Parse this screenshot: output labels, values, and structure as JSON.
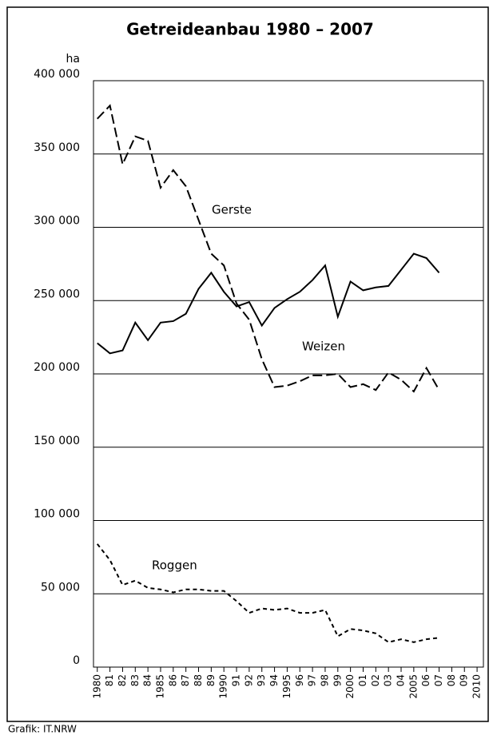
{
  "chart_data": {
    "type": "line",
    "title": "Getreideanbau 1980 – 2007",
    "y_label": "ha",
    "source": "Grafik: IT.NRW",
    "x": [
      1980,
      1981,
      1982,
      1983,
      1984,
      1985,
      1986,
      1987,
      1988,
      1989,
      1990,
      1991,
      1992,
      1993,
      1994,
      1995,
      1996,
      1997,
      1998,
      1999,
      2000,
      2001,
      2002,
      2003,
      2004,
      2005,
      2006,
      2007
    ],
    "series": [
      {
        "name": "Gerste",
        "color": "#000000",
        "line_style": "long-dash",
        "values": [
          374000,
          383000,
          343000,
          362000,
          359000,
          327000,
          339000,
          328000,
          305000,
          282000,
          274000,
          248000,
          237000,
          210000,
          191000,
          192000,
          195000,
          199000,
          199000,
          200000,
          191000,
          193000,
          189000,
          201000,
          196000,
          188000,
          204000,
          189000
        ]
      },
      {
        "name": "Weizen",
        "color": "#000000",
        "line_style": "solid",
        "values": [
          221000,
          214000,
          216000,
          235000,
          223000,
          235000,
          236000,
          241000,
          258000,
          269000,
          256000,
          246000,
          249000,
          233000,
          245000,
          251000,
          256000,
          264000,
          274000,
          239000,
          263000,
          257000,
          259000,
          260000,
          271000,
          282000,
          279000,
          269000
        ]
      },
      {
        "name": "Roggen",
        "color": "#000000",
        "line_style": "short-dash",
        "values": [
          84000,
          73000,
          56000,
          59000,
          54000,
          53000,
          51000,
          53000,
          53000,
          52000,
          52000,
          45000,
          37000,
          40000,
          39000,
          40000,
          37000,
          37000,
          39000,
          21000,
          26000,
          25000,
          23000,
          17000,
          19000,
          17000,
          19000,
          20000
        ]
      }
    ],
    "xlim": [
      1979.7,
      2010.5
    ],
    "ylim": [
      0,
      400000
    ],
    "yticks": [
      0,
      {
        "value": 50000,
        "label": "50 000"
      },
      {
        "value": 100000,
        "label": "100 000"
      },
      {
        "value": 150000,
        "label": "150 000"
      },
      {
        "value": 200000,
        "label": "200 000"
      },
      {
        "value": 250000,
        "label": "250 000"
      },
      {
        "value": 300000,
        "label": "300 000"
      },
      {
        "value": 350000,
        "label": "350 000"
      },
      {
        "value": 400000,
        "label": "400 000"
      }
    ],
    "xticks": [
      {
        "value": 1980,
        "label": "1980"
      },
      {
        "value": 1981,
        "label": "81"
      },
      {
        "value": 1982,
        "label": "82"
      },
      {
        "value": 1983,
        "label": "83"
      },
      {
        "value": 1984,
        "label": "84"
      },
      {
        "value": 1985,
        "label": "1985"
      },
      {
        "value": 1986,
        "label": "86"
      },
      {
        "value": 1987,
        "label": "87"
      },
      {
        "value": 1988,
        "label": "88"
      },
      {
        "value": 1989,
        "label": "89"
      },
      {
        "value": 1990,
        "label": "1990"
      },
      {
        "value": 1991,
        "label": "91"
      },
      {
        "value": 1992,
        "label": "92"
      },
      {
        "value": 1993,
        "label": "93"
      },
      {
        "value": 1994,
        "label": "94"
      },
      {
        "value": 1995,
        "label": "1995"
      },
      {
        "value": 1996,
        "label": "96"
      },
      {
        "value": 1997,
        "label": "97"
      },
      {
        "value": 1998,
        "label": "98"
      },
      {
        "value": 1999,
        "label": "99"
      },
      {
        "value": 2000,
        "label": "2000"
      },
      {
        "value": 2001,
        "label": "01"
      },
      {
        "value": 2002,
        "label": "02"
      },
      {
        "value": 2003,
        "label": "03"
      },
      {
        "value": 2004,
        "label": "04"
      },
      {
        "value": 2005,
        "label": "2005"
      },
      {
        "value": 2006,
        "label": "06"
      },
      {
        "value": 2007,
        "label": "07"
      },
      {
        "value": 2008,
        "label": "08"
      },
      {
        "value": 2009,
        "label": "09"
      },
      {
        "value": 2010,
        "label": "2010"
      }
    ],
    "grid": true
  }
}
